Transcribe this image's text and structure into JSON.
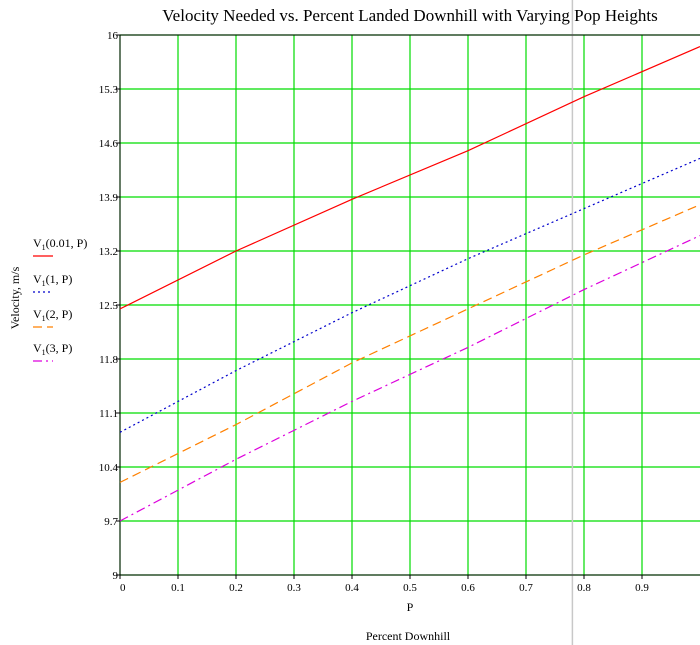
{
  "chart_data": {
    "type": "line",
    "title": "Velocity Needed vs. Percent Landed Downhill with Varying Pop Heights",
    "xlabel": "P",
    "xlabel2": "Percent Downhill",
    "ylabel": "Velocity, m/s",
    "xlim": [
      0,
      1
    ],
    "ylim": [
      9,
      16
    ],
    "x_ticks": [
      "0",
      "0.1",
      "0.2",
      "0.3",
      "0.4",
      "0.5",
      "0.6",
      "0.7",
      "0.8",
      "0.9"
    ],
    "y_ticks": [
      "9",
      "9.7",
      "10.4",
      "11.1",
      "11.8",
      "12.5",
      "13.2",
      "13.9",
      "14.6",
      "15.3",
      "16"
    ],
    "grid": true,
    "grid_color": "#00dd00",
    "cursor_x": 0.78,
    "series": [
      {
        "legend_base": "V",
        "legend_sub": "1",
        "legend_args": "(0.01, P)",
        "color": "#ff0000",
        "dash": "none",
        "x": [
          0,
          0.2,
          0.4,
          0.6,
          0.8,
          1.0
        ],
        "values": [
          12.45,
          13.2,
          13.87,
          14.5,
          15.2,
          15.85
        ]
      },
      {
        "legend_base": "V",
        "legend_sub": "1",
        "legend_args": "(1, P)",
        "color": "#0000cc",
        "dash": "2,3",
        "x": [
          0,
          0.2,
          0.4,
          0.6,
          0.8,
          1.0
        ],
        "values": [
          10.85,
          11.65,
          12.4,
          13.1,
          13.75,
          14.4
        ]
      },
      {
        "legend_base": "V",
        "legend_sub": "1",
        "legend_args": "(2, P)",
        "color": "#ff8000",
        "dash": "9,5",
        "x": [
          0,
          0.2,
          0.4,
          0.6,
          0.8,
          1.0
        ],
        "values": [
          10.2,
          10.95,
          11.75,
          12.45,
          13.15,
          13.8
        ]
      },
      {
        "legend_base": "V",
        "legend_sub": "1",
        "legend_args": "(3, P)",
        "color": "#dd00dd",
        "dash": "9,4,2,4",
        "x": [
          0,
          0.2,
          0.4,
          0.6,
          0.8,
          1.0
        ],
        "values": [
          9.7,
          10.5,
          11.25,
          11.95,
          12.7,
          13.4
        ]
      }
    ]
  }
}
